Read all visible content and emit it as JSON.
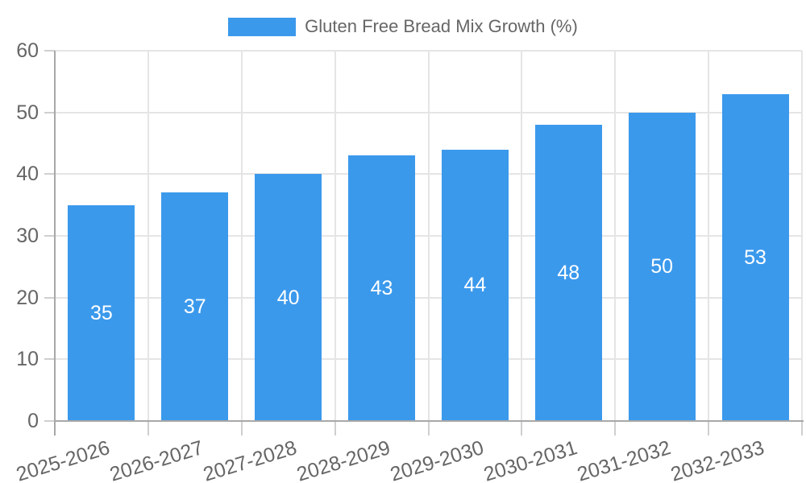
{
  "chart_data": {
    "type": "bar",
    "title": "",
    "legend": {
      "label": "Gluten Free Bread Mix Growth (%)",
      "position": "top"
    },
    "categories": [
      "2025-2026",
      "2026-2027",
      "2027-2028",
      "2028-2029",
      "2029-2030",
      "2030-2031",
      "2031-2032",
      "2032-2033"
    ],
    "series": [
      {
        "name": "Gluten Free Bread Mix Growth (%)",
        "values": [
          35,
          37,
          40,
          43,
          44,
          48,
          50,
          53
        ]
      }
    ],
    "values": [
      35,
      37,
      40,
      43,
      44,
      48,
      50,
      53
    ],
    "xlabel": "",
    "ylabel": "",
    "ylim": [
      0,
      60
    ],
    "yticks": [
      0,
      10,
      20,
      30,
      40,
      50,
      60
    ],
    "grid": true,
    "value_label_position": "center-of-bar",
    "x_tick_rotation_deg": -17,
    "colors": {
      "bar": "#3b99ec",
      "grid": "#e5e5e5",
      "tick": "#cfcfcf",
      "axis": "#a8a8a8",
      "text": "#666666",
      "value_text": "#ffffff",
      "background": "#ffffff"
    }
  }
}
